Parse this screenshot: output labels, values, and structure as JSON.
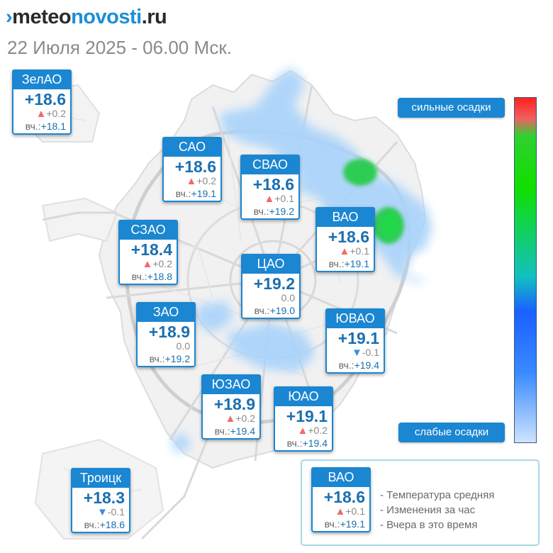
{
  "header": {
    "logo_mark": "›",
    "logo_part1": "meteo",
    "logo_part2": "novosti",
    "logo_part3": ".ru",
    "subtitle": "22 Июля 2025 - 06.00 Мск."
  },
  "districts": {
    "zelao": {
      "name": "ЗелАО",
      "temp": "+18.6",
      "change": "+0.2",
      "trend": "up",
      "yesterday_label": "вч.:",
      "yesterday": "+18.1"
    },
    "sao": {
      "name": "САО",
      "temp": "+18.6",
      "change": "+0.2",
      "trend": "up",
      "yesterday_label": "вч.:",
      "yesterday": "+19.1"
    },
    "svao": {
      "name": "СВАО",
      "temp": "+18.6",
      "change": "+0.1",
      "trend": "up",
      "yesterday_label": "вч.:",
      "yesterday": "+19.2"
    },
    "vao": {
      "name": "ВАО",
      "temp": "+18.6",
      "change": "+0.1",
      "trend": "up",
      "yesterday_label": "вч.:",
      "yesterday": "+19.1"
    },
    "szao": {
      "name": "СЗАО",
      "temp": "+18.4",
      "change": "+0.2",
      "trend": "up",
      "yesterday_label": "вч.:",
      "yesterday": "+18.8"
    },
    "cao": {
      "name": "ЦАО",
      "temp": "+19.2",
      "change": "0.0",
      "trend": "none",
      "yesterday_label": "вч.:",
      "yesterday": "+19.0"
    },
    "zao": {
      "name": "ЗАО",
      "temp": "+18.9",
      "change": "0.0",
      "trend": "none",
      "yesterday_label": "вч.:",
      "yesterday": "+19.2"
    },
    "yuvao": {
      "name": "ЮВАО",
      "temp": "+19.1",
      "change": "-0.1",
      "trend": "down",
      "yesterday_label": "вч.:",
      "yesterday": "+19.4"
    },
    "yuzao": {
      "name": "ЮЗАО",
      "temp": "+18.9",
      "change": "+0.2",
      "trend": "up",
      "yesterday_label": "вч.:",
      "yesterday": "+19.4"
    },
    "yuao": {
      "name": "ЮАО",
      "temp": "+19.1",
      "change": "+0.2",
      "trend": "up",
      "yesterday_label": "вч.:",
      "yesterday": "+19.4"
    },
    "troitsk": {
      "name": "Троицк",
      "temp": "+18.3",
      "change": "-0.1",
      "trend": "down",
      "yesterday_label": "вч.:",
      "yesterday": "+18.6"
    }
  },
  "trend_symbols": {
    "up": "▲",
    "down": "▼"
  },
  "precip_scale": {
    "top_label": "сильные осадки",
    "bottom_label": "слабые осадки",
    "colors": [
      "#ff2020",
      "#10e000",
      "#1a60ff",
      "#cfe3ff"
    ]
  },
  "legend": {
    "sample": {
      "name": "ВАО",
      "temp": "+18.6",
      "change": "+0.1",
      "trend": "up",
      "yesterday_label": "вч.:",
      "yesterday": "+19.1"
    },
    "line1": "- Температура средняя",
    "line2": "- Изменения за час",
    "line3": "- Вчера в это время"
  },
  "colors": {
    "accent": "#1b86d1",
    "up": "#f06a6a",
    "down": "#3a8fdd"
  }
}
